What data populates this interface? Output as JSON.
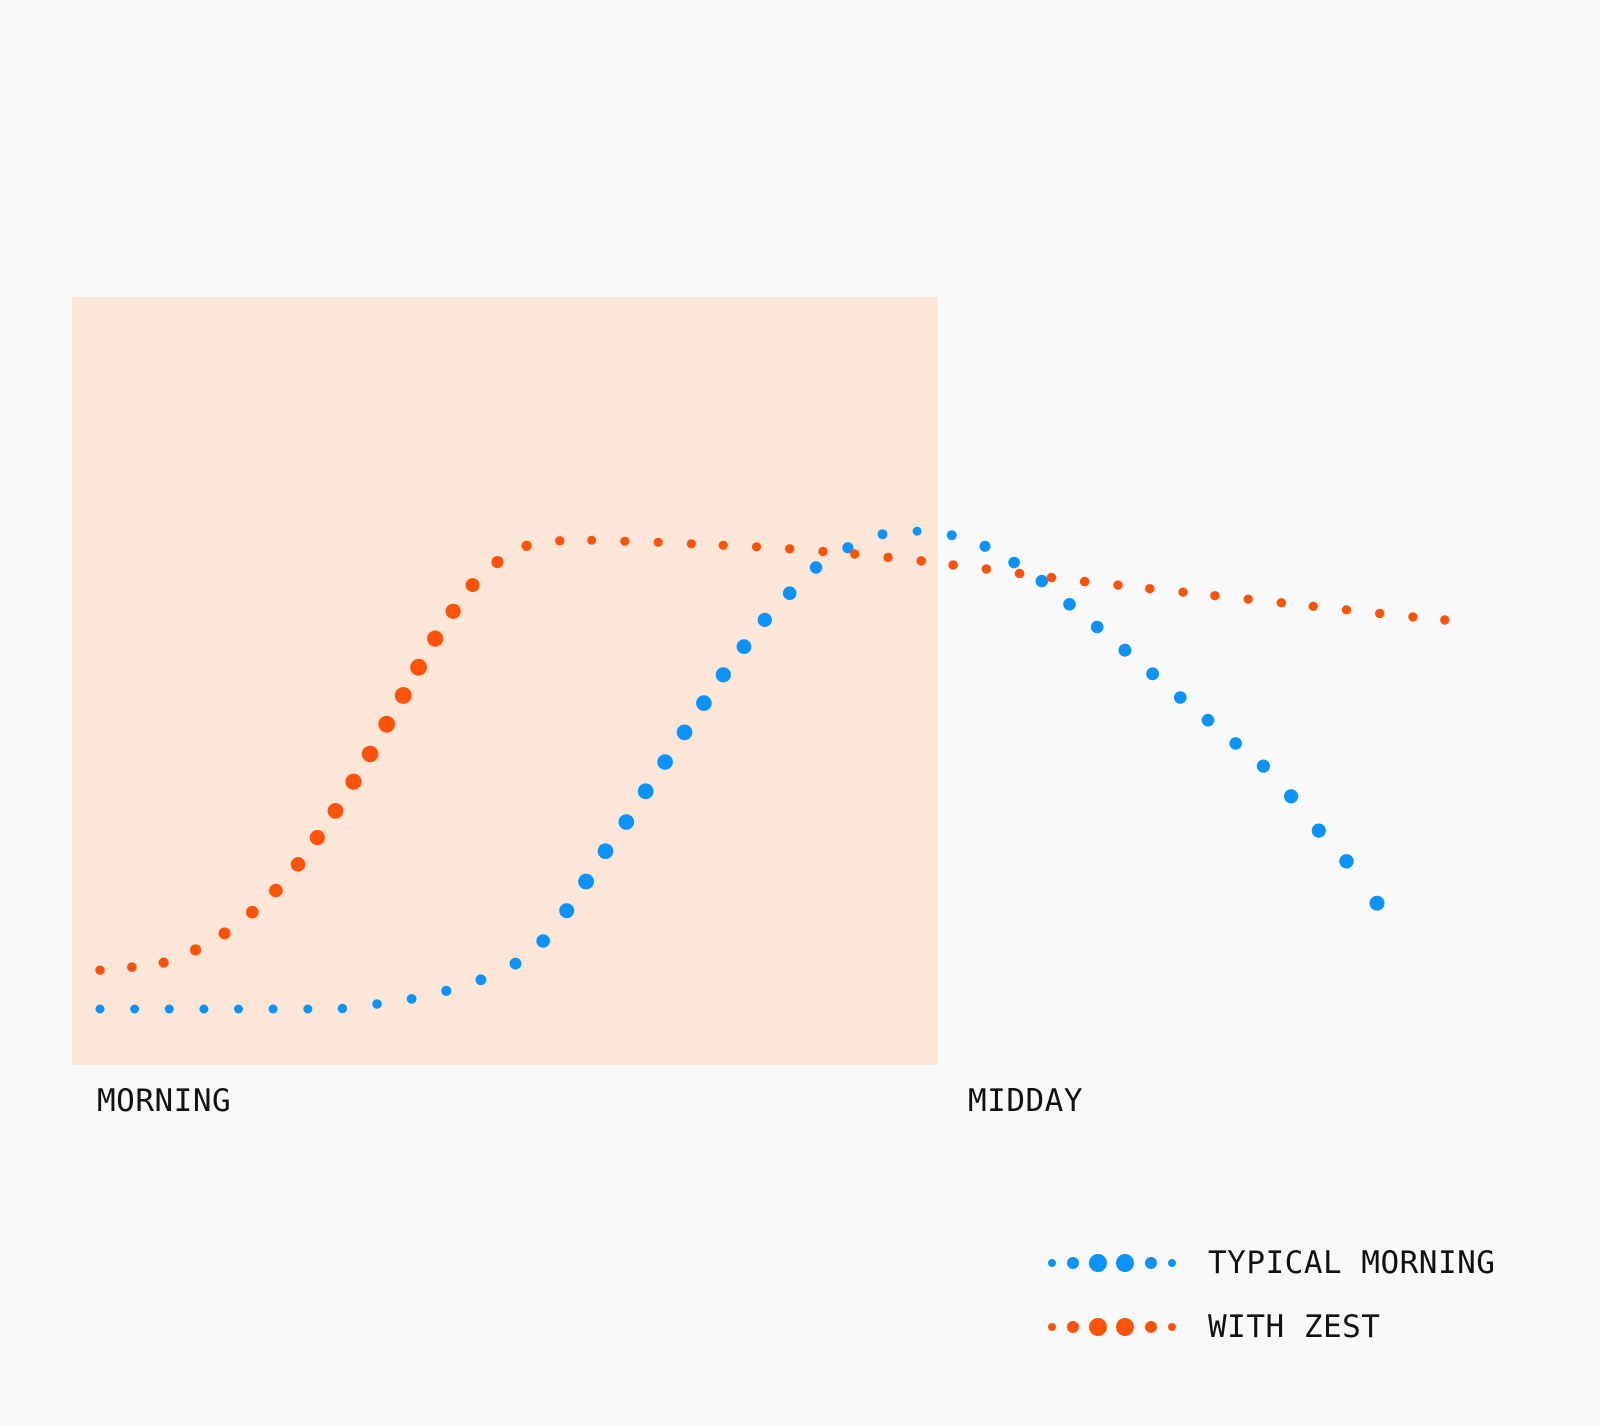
{
  "chart_data": {
    "type": "scatter",
    "title": "",
    "xlabel": "",
    "ylabel": "",
    "xlim": [
      0,
      100
    ],
    "ylim": [
      0,
      100
    ],
    "grid": false,
    "x_tick_labels": [
      {
        "x": 0,
        "label": "MORNING"
      },
      {
        "x": 62.5,
        "label": "MIDDAY"
      }
    ],
    "highlight_region": {
      "x0": -2,
      "x1": 60.5,
      "color": "#fce6d7"
    },
    "legend_position": "bottom-right",
    "series": [
      {
        "name": "TYPICAL MORNING",
        "color": "#0a93fb",
        "points": [
          [
            0,
            0
          ],
          [
            2.5,
            0
          ],
          [
            5,
            0
          ],
          [
            7.5,
            0
          ],
          [
            10,
            0
          ],
          [
            12.5,
            0
          ],
          [
            15,
            0
          ],
          [
            17.5,
            0.1
          ],
          [
            20,
            1
          ],
          [
            22.5,
            2
          ],
          [
            25,
            3.6
          ],
          [
            27.5,
            5.8
          ],
          [
            30,
            9
          ],
          [
            32,
            13.5
          ],
          [
            33.7,
            19.5
          ],
          [
            35.1,
            25.3
          ],
          [
            36.5,
            31.3
          ],
          [
            38,
            37.1
          ],
          [
            39.4,
            43.2
          ],
          [
            40.8,
            49
          ],
          [
            42.2,
            54.9
          ],
          [
            43.6,
            60.7
          ],
          [
            45,
            66.3
          ],
          [
            46.5,
            71.9
          ],
          [
            48,
            77.2
          ],
          [
            49.8,
            82.5
          ],
          [
            51.7,
            87.6
          ],
          [
            54,
            91.5
          ],
          [
            56.5,
            94.2
          ],
          [
            59,
            94.8
          ],
          [
            61.5,
            94
          ],
          [
            63.9,
            91.8
          ],
          [
            66,
            88.6
          ],
          [
            68,
            84.9
          ],
          [
            70,
            80.3
          ],
          [
            72,
            75.8
          ],
          [
            74,
            71.2
          ],
          [
            76,
            66.5
          ],
          [
            78,
            61.8
          ],
          [
            80,
            57.3
          ],
          [
            82,
            52.7
          ],
          [
            84,
            48.2
          ],
          [
            86,
            42.2
          ],
          [
            88,
            35.4
          ],
          [
            90,
            29.3
          ],
          [
            92.2,
            21
          ]
        ]
      },
      {
        "name": "WITH ZEST",
        "color": "#fd5308",
        "points": [
          [
            0,
            7.7
          ],
          [
            2.3,
            8.3
          ],
          [
            4.6,
            9.2
          ],
          [
            6.9,
            11.7
          ],
          [
            9,
            15
          ],
          [
            11,
            19.2
          ],
          [
            12.7,
            23.5
          ],
          [
            14.3,
            28.7
          ],
          [
            15.7,
            34
          ],
          [
            17,
            39.3
          ],
          [
            18.3,
            45.1
          ],
          [
            19.5,
            50.6
          ],
          [
            20.7,
            56.5
          ],
          [
            21.9,
            62.2
          ],
          [
            23,
            67.8
          ],
          [
            24.2,
            73.5
          ],
          [
            25.5,
            78.9
          ],
          [
            26.9,
            84.1
          ],
          [
            28.7,
            88.7
          ],
          [
            30.8,
            91.9
          ],
          [
            33.2,
            92.9
          ],
          [
            35.5,
            93
          ],
          [
            37.9,
            92.8
          ],
          [
            40.3,
            92.6
          ],
          [
            42.7,
            92.3
          ],
          [
            45,
            92
          ],
          [
            47.4,
            91.7
          ],
          [
            49.8,
            91.3
          ],
          [
            52.2,
            90.8
          ],
          [
            54.5,
            90.3
          ],
          [
            56.9,
            89.6
          ],
          [
            59.3,
            88.9
          ],
          [
            61.6,
            88.1
          ],
          [
            64,
            87.3
          ],
          [
            66.4,
            86.4
          ],
          [
            68.7,
            85.6
          ],
          [
            71.1,
            84.8
          ],
          [
            73.5,
            84.1
          ],
          [
            75.8,
            83.4
          ],
          [
            78.2,
            82.7
          ],
          [
            80.5,
            82
          ],
          [
            82.9,
            81.3
          ],
          [
            85.3,
            80.6
          ],
          [
            87.6,
            79.9
          ],
          [
            90,
            79.2
          ],
          [
            92.4,
            78.5
          ],
          [
            94.8,
            77.8
          ],
          [
            97.1,
            77.2
          ]
        ]
      }
    ]
  }
}
